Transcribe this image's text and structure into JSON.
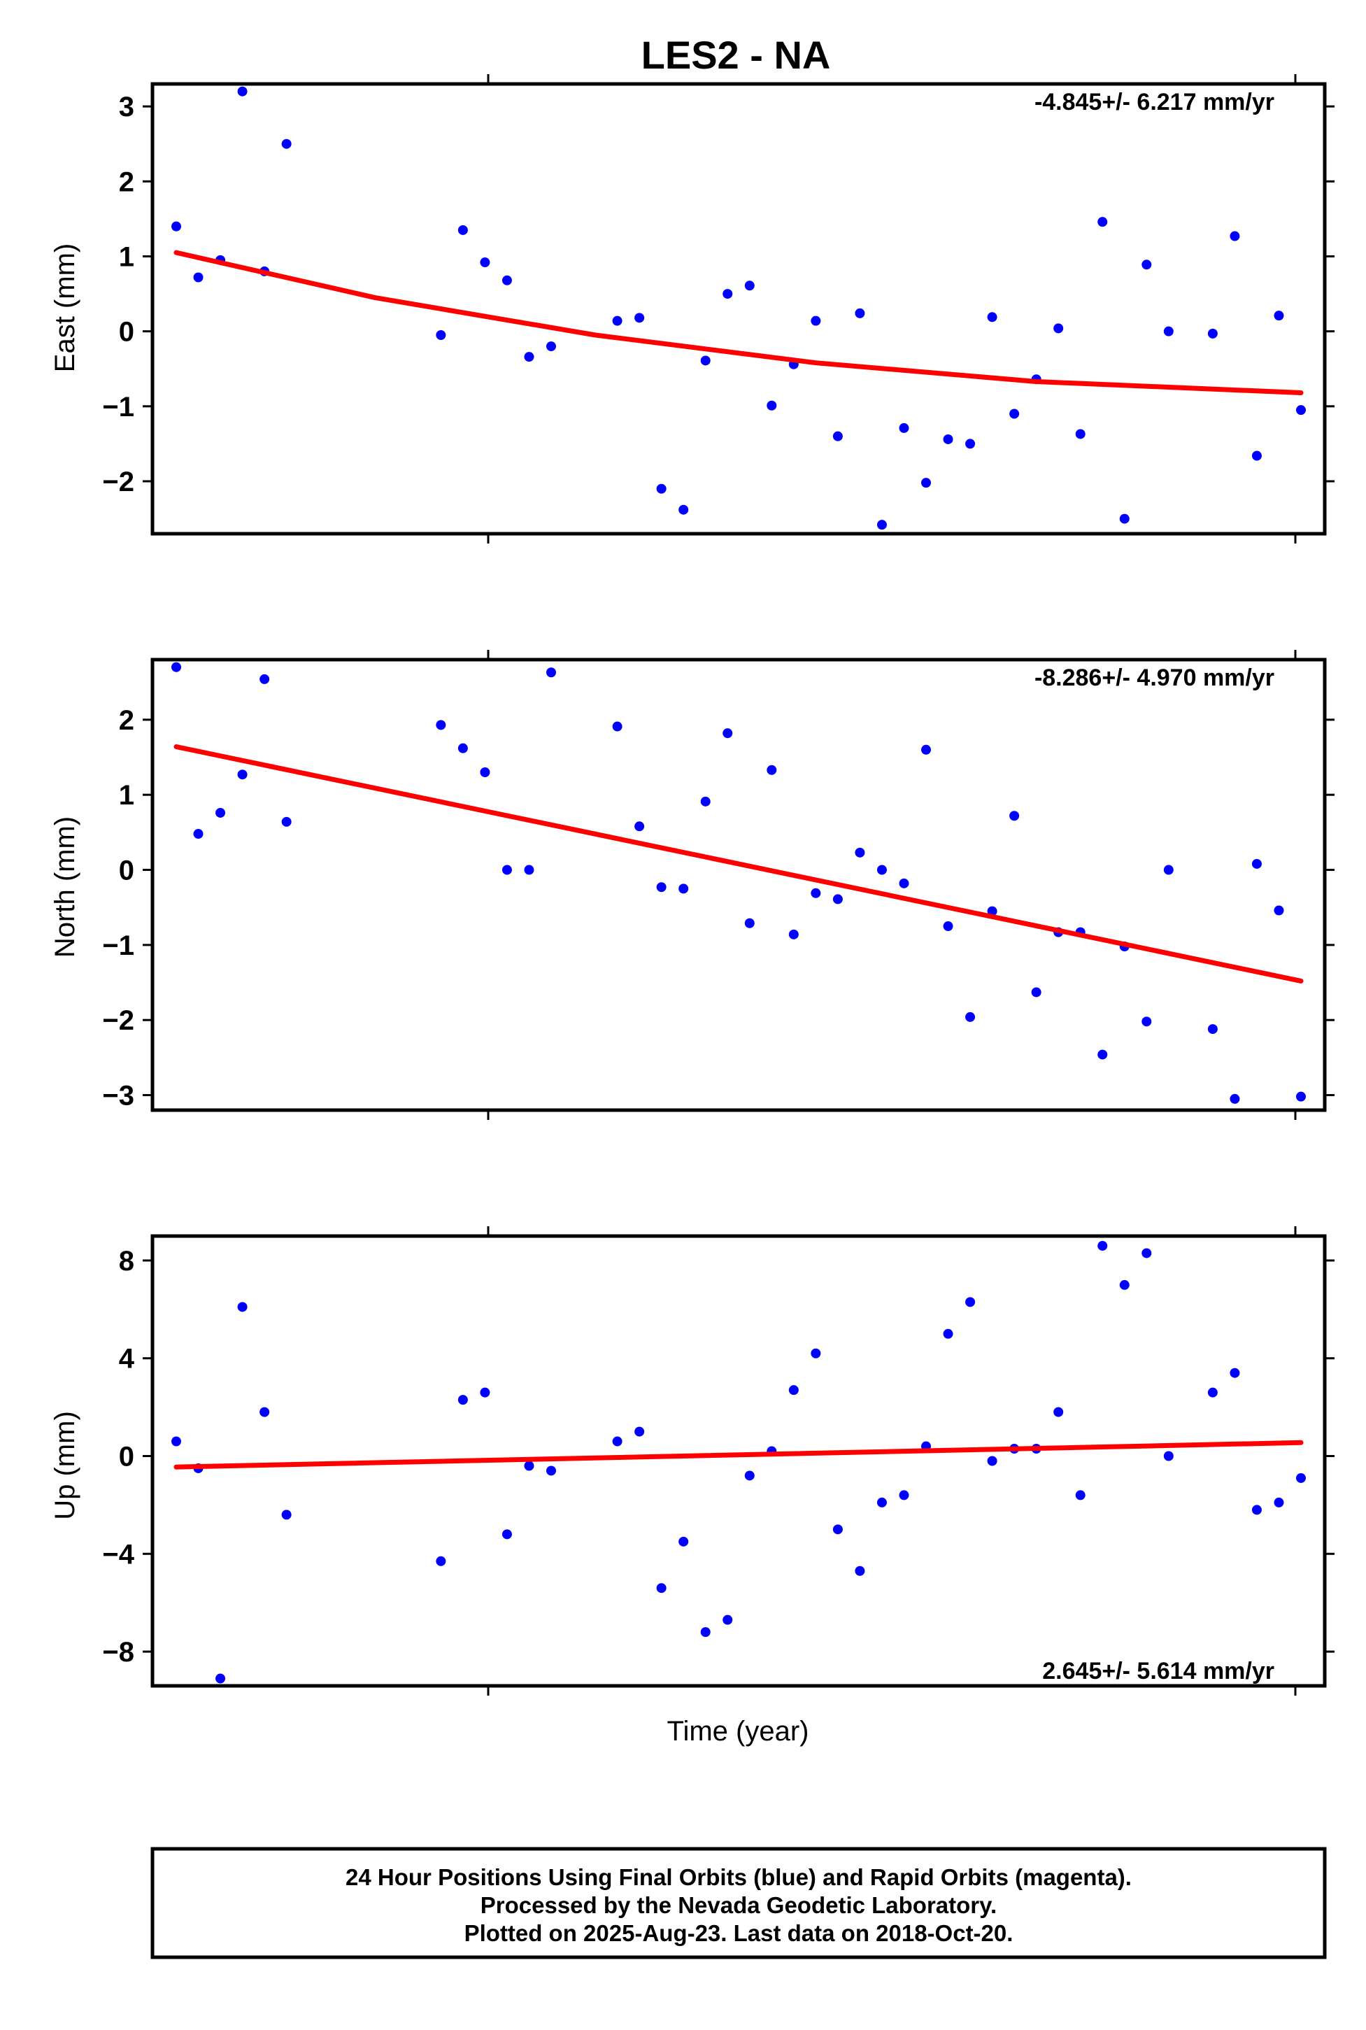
{
  "title": "LES2 - NA",
  "xlabel": "Time (year)",
  "colors": {
    "data": "#0000ff",
    "fit": "#ff0000",
    "frame": "#000000"
  },
  "footer": {
    "lines": [
      "24 Hour Positions Using Final Orbits (blue) and Rapid Orbits (magenta).",
      "Processed by the Nevada Geodetic Laboratory.",
      "Plotted on 2025-Aug-23. Last data on 2018-Oct-20."
    ]
  },
  "chart_data": [
    {
      "type": "scatter",
      "ylabel": "East (mm)",
      "annotation": "-4.845+/- 6.217 mm/yr",
      "annotation_position": "top-right",
      "ylim": [
        -2.7,
        3.3
      ],
      "yticks": [
        -2,
        -1,
        0,
        1,
        2,
        3
      ],
      "ytick_labels": [
        "−2",
        "−1",
        "0",
        "1",
        "2",
        "3"
      ],
      "x_index": [
        1,
        2,
        3,
        4,
        5,
        6,
        13,
        14,
        15,
        16,
        17,
        18,
        21,
        22,
        23,
        24,
        25,
        26,
        27,
        28,
        29,
        30,
        31,
        32,
        33,
        34,
        35,
        36,
        37,
        38,
        39,
        40,
        41,
        42,
        43,
        44,
        45,
        46,
        48,
        49,
        50,
        51,
        52
      ],
      "values": [
        1.4,
        0.72,
        0.95,
        3.2,
        0.8,
        2.5,
        -0.05,
        1.35,
        0.92,
        0.68,
        -0.34,
        -0.2,
        0.14,
        0.18,
        -2.1,
        -2.38,
        -0.39,
        0.5,
        0.61,
        -0.99,
        -0.44,
        0.14,
        -1.4,
        0.24,
        -2.58,
        -1.29,
        -2.02,
        -1.44,
        -1.5,
        0.19,
        -1.1,
        -0.64,
        0.04,
        -1.37,
        1.46,
        -2.5,
        0.89,
        0.0,
        -0.03,
        1.27,
        -1.66,
        0.21,
        -1.05
      ],
      "fit": {
        "x_index": [
          1,
          10,
          20,
          30,
          40,
          52
        ],
        "values": [
          1.05,
          0.45,
          -0.05,
          -0.42,
          -0.67,
          -0.82
        ]
      }
    },
    {
      "type": "scatter",
      "ylabel": "North (mm)",
      "annotation": "-8.286+/- 4.970 mm/yr",
      "annotation_position": "top-right",
      "ylim": [
        -3.2,
        2.8
      ],
      "yticks": [
        -3,
        -2,
        -1,
        0,
        1,
        2
      ],
      "ytick_labels": [
        "−3",
        "−2",
        "−1",
        "0",
        "1",
        "2"
      ],
      "x_index": [
        1,
        2,
        3,
        4,
        5,
        6,
        13,
        14,
        15,
        16,
        17,
        18,
        21,
        22,
        23,
        24,
        25,
        26,
        27,
        28,
        29,
        30,
        31,
        32,
        33,
        34,
        35,
        36,
        37,
        38,
        39,
        40,
        41,
        42,
        43,
        44,
        45,
        46,
        48,
        49,
        50,
        51,
        52
      ],
      "values": [
        2.7,
        0.48,
        0.76,
        1.27,
        2.54,
        0.64,
        1.93,
        1.62,
        1.3,
        0.0,
        0.0,
        2.63,
        1.91,
        0.58,
        -0.23,
        -0.25,
        0.91,
        1.82,
        -0.71,
        1.33,
        -0.86,
        -0.31,
        -0.39,
        0.23,
        0.0,
        -0.18,
        1.6,
        -0.75,
        -1.96,
        -0.55,
        0.72,
        -1.63,
        -0.83,
        -0.83,
        -2.46,
        -1.02,
        -2.02,
        0.0,
        -2.12,
        -3.05,
        0.08,
        -0.54,
        -3.02
      ],
      "fit": {
        "x_index": [
          1,
          52
        ],
        "values": [
          1.64,
          -1.48
        ]
      }
    },
    {
      "type": "scatter",
      "ylabel": "Up (mm)",
      "annotation": "2.645+/- 5.614 mm/yr",
      "annotation_position": "bottom-right",
      "ylim": [
        -9.4,
        9.0
      ],
      "yticks": [
        -8,
        -4,
        0,
        4,
        8
      ],
      "ytick_labels": [
        "−8",
        "−4",
        "0",
        "4",
        "8"
      ],
      "x_index": [
        1,
        2,
        3,
        4,
        5,
        6,
        13,
        14,
        15,
        16,
        17,
        18,
        21,
        22,
        23,
        24,
        25,
        26,
        27,
        28,
        29,
        30,
        31,
        32,
        33,
        34,
        35,
        36,
        37,
        38,
        39,
        40,
        41,
        42,
        43,
        44,
        45,
        46,
        48,
        49,
        50,
        51,
        52
      ],
      "values": [
        0.6,
        -0.5,
        -9.1,
        6.1,
        1.8,
        -2.4,
        -4.3,
        2.3,
        2.6,
        -3.2,
        -0.4,
        -0.6,
        0.6,
        1.0,
        -5.4,
        -3.5,
        -7.2,
        -6.7,
        -0.8,
        0.2,
        2.7,
        4.2,
        -3.0,
        -4.7,
        -1.9,
        -1.6,
        0.4,
        5.0,
        6.3,
        -0.2,
        0.3,
        0.3,
        1.8,
        -1.6,
        8.6,
        7.0,
        8.3,
        0.0,
        2.6,
        3.4,
        -2.2,
        -1.9,
        -0.9
      ],
      "fit": {
        "x_index": [
          1,
          52
        ],
        "values": [
          -0.45,
          0.55
        ]
      }
    }
  ]
}
